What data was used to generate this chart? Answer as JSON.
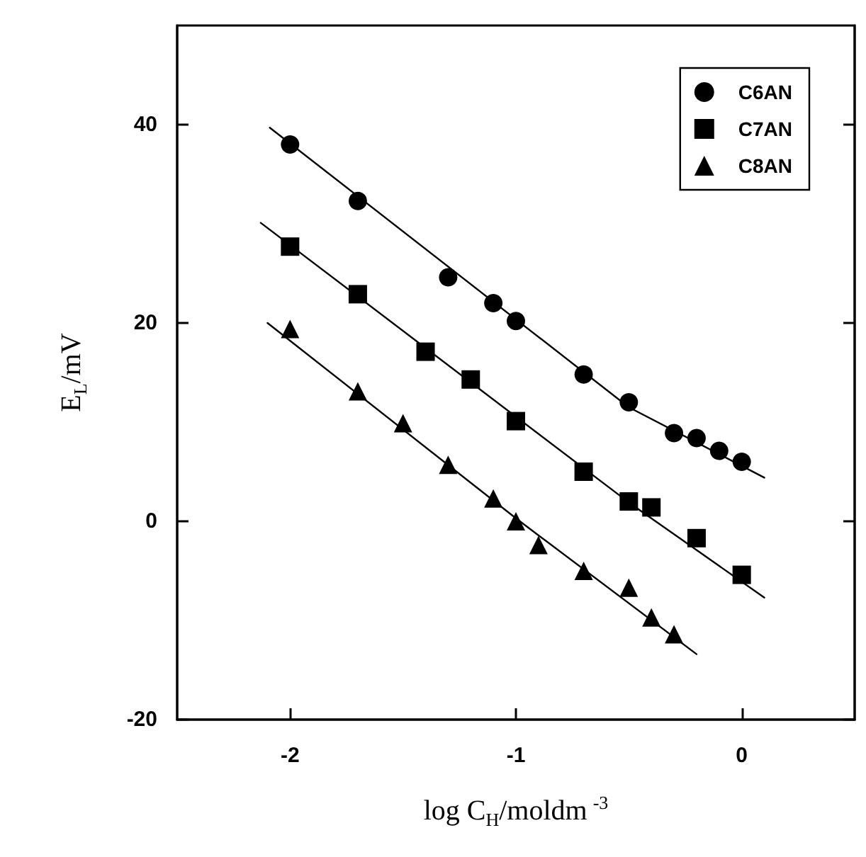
{
  "chart_data": {
    "type": "scatter",
    "xlabel": "log C$_{H}$/moldm$^{-3}$",
    "ylabel": "E$_{L}$/mV",
    "xlim": [
      -2.5,
      0.5
    ],
    "xticks": [
      -2,
      -1,
      0
    ],
    "ylim": [
      -20,
      50
    ],
    "yticks": [
      -20,
      0,
      20,
      40
    ],
    "grid": false,
    "legend": "top right",
    "series": [
      {
        "name": "C6AN",
        "color": "#000000",
        "marker": "circle",
        "x": [
          -2,
          -1.7,
          -1.3,
          -1.1,
          -1.0,
          -0.7,
          -0.5,
          -0.3,
          -0.2,
          -0.1,
          0
        ],
        "values": [
          38,
          32.3,
          24.6,
          22,
          20.2,
          14.8,
          12,
          8.9,
          8.4,
          7.1,
          6
        ]
      },
      {
        "name": "C7AN",
        "color": "#000000",
        "marker": "square",
        "x": [
          -2,
          -1.7,
          -1.4,
          -1.2,
          -1.0,
          -0.7,
          -0.5,
          -0.4,
          -0.2,
          0
        ],
        "values": [
          27.7,
          22.9,
          17.1,
          14.3,
          10.1,
          5,
          2,
          1.4,
          -1.7,
          -5.4
        ]
      },
      {
        "name": "C8AN",
        "color": "#000000",
        "marker": "triangle",
        "x": [
          -2,
          -1.7,
          -1.5,
          -1.3,
          -1.1,
          -1.0,
          -0.9,
          -0.7,
          -0.5,
          -0.4,
          -0.3
        ],
        "values": [
          19.4,
          13.1,
          9.9,
          5.7,
          2.3,
          0,
          -2.4,
          -5,
          -6.7,
          -9.7,
          -11.4
        ]
      },
      {
        "type": "line",
        "color": "#000000",
        "marker": "none",
        "line_style": "solid",
        "x": [
          -2.09,
          -0.5,
          0.1
        ],
        "values": [
          39.7,
          11.5,
          4.4
        ]
      },
      {
        "type": "line",
        "color": "#000000",
        "marker": "none",
        "line_style": "solid",
        "x": [
          -2.13,
          -0.5,
          0.1
        ],
        "values": [
          30.1,
          1.9,
          -7.7
        ]
      },
      {
        "type": "line",
        "color": "#000000",
        "marker": "none",
        "line_style": "solid",
        "x": [
          -2.1,
          -1,
          -0.2
        ],
        "values": [
          20,
          0.3,
          -13.4
        ]
      }
    ]
  }
}
